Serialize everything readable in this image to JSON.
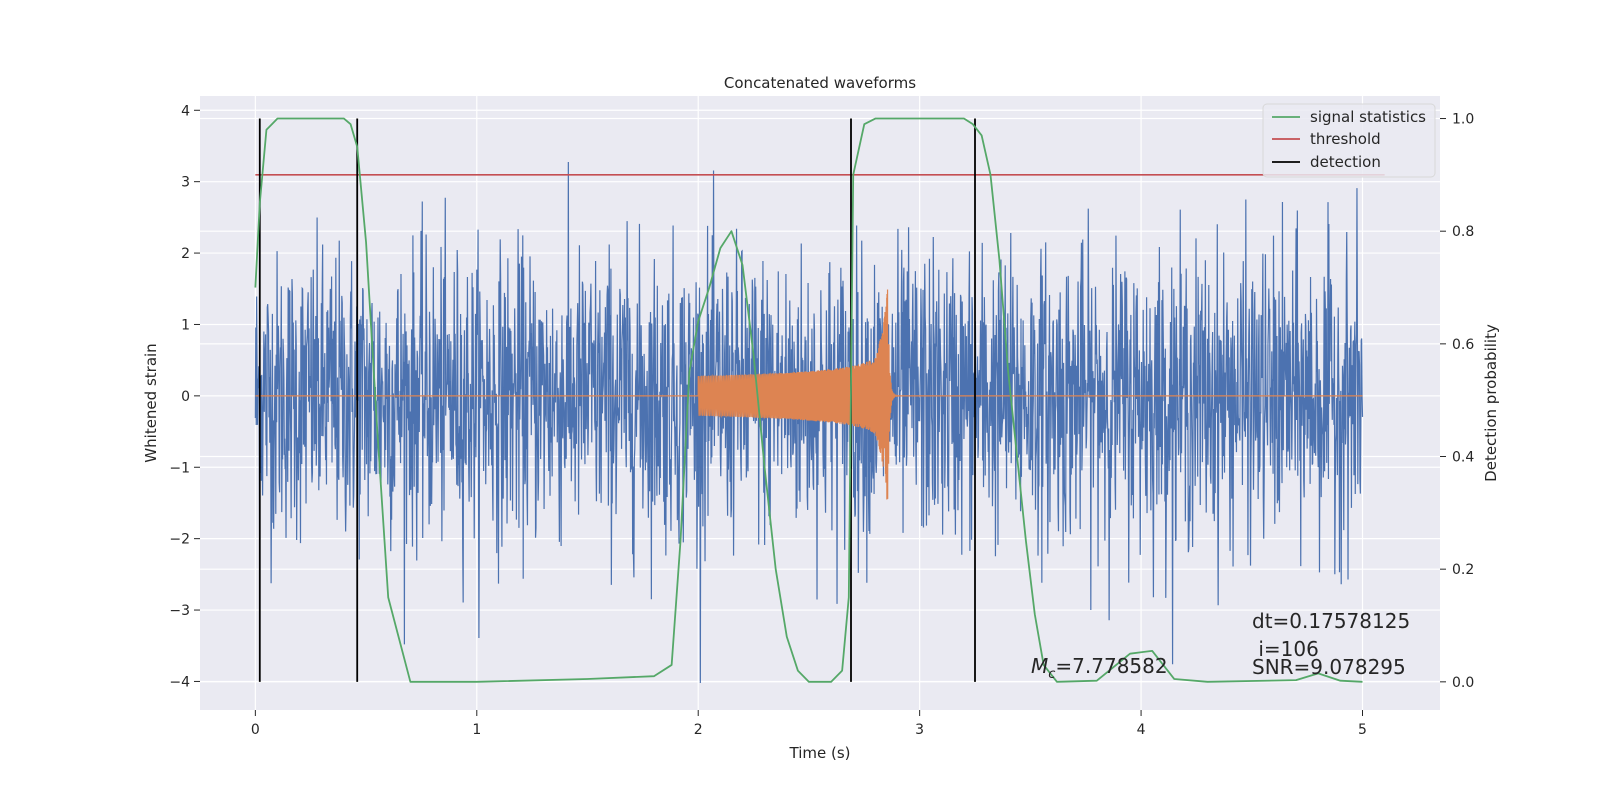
{
  "chart_data": {
    "type": "line",
    "title": "Concatenated waveforms",
    "xlabel": "Time (s)",
    "ylabel": "Whitened strain",
    "ylabel_right": "Detection probability",
    "xlim": [
      -0.25,
      5.35
    ],
    "ylim": [
      -4.4,
      4.2
    ],
    "ylim_right": [
      -0.05,
      1.04
    ],
    "x_ticks": [
      0,
      1,
      2,
      3,
      4,
      5
    ],
    "y_ticks": [
      -4,
      -3,
      -2,
      -1,
      0,
      1,
      2,
      3,
      4
    ],
    "y_ticks_right": [
      "0.0",
      "0.2",
      "0.4",
      "0.6",
      "0.8",
      "1.0"
    ],
    "grid": true,
    "legend_position": "top-right",
    "colors": {
      "noise": "#4c72b0",
      "template": "#dd8452",
      "signal_statistics": "#55a868",
      "threshold": "#c44e52",
      "detection": "#000000",
      "background": "#eaeaf2"
    },
    "series": [
      {
        "key": "whitened_strain",
        "description_visible": false,
        "style": "noise",
        "x_range": [
          0,
          5
        ],
        "envelope_max": 3.8,
        "envelope_min": -4.05,
        "typical_amplitude": 1.0
      },
      {
        "key": "template",
        "style": "chirp",
        "x_range": [
          2.0,
          2.9
        ],
        "peak_x": 2.86,
        "peak_amplitude": 1.5
      },
      {
        "name": "signal statistics",
        "axis": "right",
        "x": [
          0,
          0.02,
          0.05,
          0.1,
          0.2,
          0.3,
          0.4,
          0.43,
          0.46,
          0.5,
          0.55,
          0.6,
          0.7,
          1.0,
          1.5,
          1.8,
          1.88,
          1.92,
          1.96,
          2.0,
          2.05,
          2.1,
          2.15,
          2.2,
          2.25,
          2.3,
          2.35,
          2.4,
          2.45,
          2.5,
          2.6,
          2.65,
          2.68,
          2.7,
          2.75,
          2.8,
          3.0,
          3.2,
          3.24,
          3.28,
          3.32,
          3.36,
          3.4,
          3.44,
          3.48,
          3.52,
          3.56,
          3.62,
          3.8,
          3.95,
          4.05,
          4.15,
          4.3,
          4.7,
          4.8,
          4.9,
          5.0
        ],
        "y": [
          0.7,
          0.85,
          0.98,
          1.0,
          1.0,
          1.0,
          1.0,
          0.99,
          0.95,
          0.78,
          0.45,
          0.15,
          0.0,
          0.0,
          0.005,
          0.01,
          0.03,
          0.25,
          0.55,
          0.64,
          0.7,
          0.77,
          0.8,
          0.74,
          0.58,
          0.38,
          0.2,
          0.08,
          0.02,
          0.0,
          0.0,
          0.02,
          0.15,
          0.9,
          0.99,
          1.0,
          1.0,
          1.0,
          0.99,
          0.97,
          0.9,
          0.75,
          0.55,
          0.4,
          0.25,
          0.12,
          0.03,
          0.0,
          0.002,
          0.05,
          0.055,
          0.005,
          0.0,
          0.003,
          0.015,
          0.002,
          0.0
        ]
      },
      {
        "name": "threshold",
        "axis": "right",
        "x": [
          0,
          5.1
        ],
        "y": [
          0.9,
          0.9
        ]
      },
      {
        "name": "detection",
        "axis": "right",
        "vlines": [
          0.02,
          0.46,
          2.69,
          3.25
        ],
        "y_range": [
          0.0,
          1.0
        ]
      }
    ],
    "legend": [
      "signal statistics",
      "threshold",
      "detection"
    ],
    "annotations": {
      "mc_prefix": "M",
      "mc_sub": "c",
      "mc_value": "=7.778582",
      "dt": "dt=0.17578125",
      "i": " i=106",
      "snr": "SNR=9.078295"
    }
  }
}
